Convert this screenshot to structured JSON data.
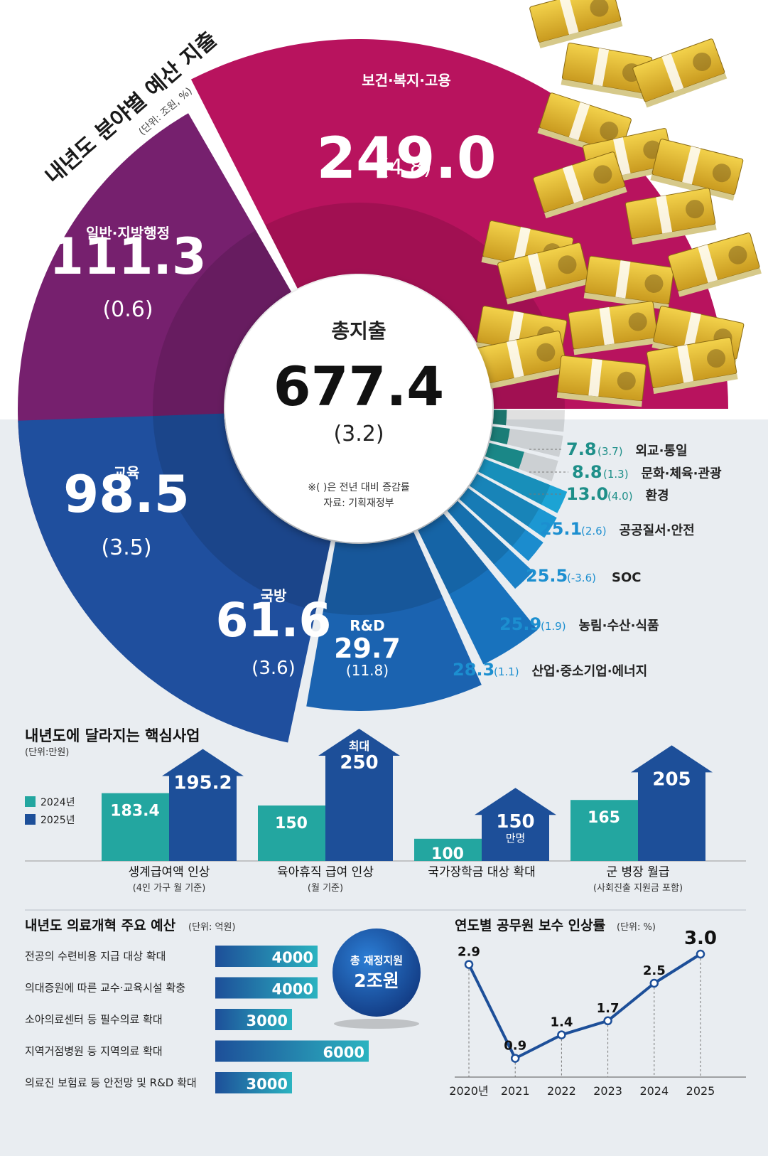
{
  "header": {
    "title": "내년도 분야별 예산 지출",
    "unit": "(단위: 조원, %)"
  },
  "center": {
    "label": "총지출",
    "value": "677.4",
    "change": "(3.2)",
    "note": "※( )은 전년 대비 증감률",
    "source": "자료: 기획재정부"
  },
  "chart_data": [
    {
      "type": "pie",
      "title": "내년도 분야별 예산 지출",
      "unit": "조원, %",
      "total": 677.4,
      "total_change": 3.2,
      "slices": [
        {
          "name": "보건·복지·고용",
          "value": 249.0,
          "change": 4.8,
          "value_label": "249.0",
          "change_label": "(4.8)",
          "color": "#b8135e"
        },
        {
          "name": "일반·지방행정",
          "value": 111.3,
          "change": 0.6,
          "value_label": "111.3",
          "change_label": "(0.6)",
          "color": "#76206e"
        },
        {
          "name": "교육",
          "value": 98.5,
          "change": 3.5,
          "value_label": "98.5",
          "change_label": "(3.5)",
          "color": "#1f4f9e"
        },
        {
          "name": "국방",
          "value": 61.6,
          "change": 3.6,
          "value_label": "61.6",
          "change_label": "(3.6)",
          "color": "#1b63b0"
        },
        {
          "name": "R&D",
          "value": 29.7,
          "change": 11.8,
          "value_label": "29.7",
          "change_label": "(11.8)",
          "color": "#1872bd"
        },
        {
          "name": "산업·중소기업·에너지",
          "value": 28.3,
          "change": 1.1,
          "value_label": "28.3",
          "change_label": "(1.1)",
          "color": "#1a80c6"
        },
        {
          "name": "농림·수산·식품",
          "value": 25.9,
          "change": 1.9,
          "value_label": "25.9",
          "change_label": "(1.9)",
          "color": "#1b8cce"
        },
        {
          "name": "SOC",
          "value": 25.5,
          "change": -3.6,
          "value_label": "25.5",
          "change_label": "(-3.6)",
          "color": "#1c97d2"
        },
        {
          "name": "공공질서·안전",
          "value": 25.1,
          "change": 2.6,
          "value_label": "25.1",
          "change_label": "(2.6)",
          "color": "#1ca3d4"
        },
        {
          "name": "환경",
          "value": 13.0,
          "change": 4.0,
          "value_label": "13.0",
          "change_label": "(4.0)",
          "color": "#1e9a9a"
        },
        {
          "name": "문화·체육·관광",
          "value": 8.8,
          "change": 1.3,
          "value_label": "8.8",
          "change_label": "(1.3)",
          "color": "#1f8f88"
        },
        {
          "name": "외교·통일",
          "value": 7.8,
          "change": 3.7,
          "value_label": "7.8",
          "change_label": "(3.7)",
          "color": "#20857c"
        }
      ]
    },
    {
      "type": "bar",
      "title": "내년도에 달라지는 핵심사업",
      "unit": "(단위:만원)",
      "legend": [
        "2024년",
        "2025년"
      ],
      "legend_colors": [
        "#23a6a0",
        "#1d4f99"
      ],
      "groups": [
        {
          "label": "생계급여액 인상",
          "sublabel": "(4인 가구 월 기준)",
          "values": [
            183.4,
            195.2
          ],
          "value_labels": [
            "183.4",
            "195.2"
          ],
          "prefix": [
            "",
            ""
          ],
          "suffix": [
            "",
            ""
          ]
        },
        {
          "label": "육아휴직 급여 인상",
          "sublabel": "(월 기준)",
          "values": [
            150,
            250
          ],
          "value_labels": [
            "150",
            "250"
          ],
          "prefix": [
            "",
            "최대"
          ],
          "suffix": [
            "",
            ""
          ]
        },
        {
          "label": "국가장학금 대상 확대",
          "sublabel": "",
          "values": [
            100,
            150
          ],
          "value_labels": [
            "100",
            "150"
          ],
          "prefix": [
            "",
            ""
          ],
          "suffix": [
            "만명",
            "만명"
          ]
        },
        {
          "label": "군 병장 월급",
          "sublabel": "(사회진출 지원금 포함)",
          "values": [
            165,
            205
          ],
          "value_labels": [
            "165",
            "205"
          ],
          "prefix": [
            "",
            ""
          ],
          "suffix": [
            "",
            ""
          ]
        }
      ]
    },
    {
      "type": "bar",
      "orientation": "horizontal",
      "title": "내년도 의료개혁 주요 예산",
      "unit": "(단위: 억원)",
      "categories": [
        "전공의 수련비용 지급 대상 확대",
        "의대증원에 따른 교수·교육시설 확충",
        "소아의료센터 등 필수의료 확대",
        "지역거점병원 등 지역의료 확대",
        "의료진 보험료 등 안전망 및 R&D 확대"
      ],
      "values": [
        4000,
        4000,
        3000,
        6000,
        3000
      ],
      "value_labels": [
        "4000",
        "4000",
        "3000",
        "6000",
        "3000"
      ],
      "badge_top": "총 재정지원",
      "badge_bottom": "2조원"
    },
    {
      "type": "line",
      "title": "연도별 공무원 보수 인상률",
      "unit": "(단위: %)",
      "x": [
        "2020년",
        "2021",
        "2022",
        "2023",
        "2024",
        "2025"
      ],
      "y": [
        2.9,
        0.9,
        1.4,
        1.7,
        2.5,
        3.0
      ],
      "y_labels": [
        "2.9",
        "0.9",
        "1.4",
        "1.7",
        "2.5",
        "3.0"
      ]
    }
  ]
}
